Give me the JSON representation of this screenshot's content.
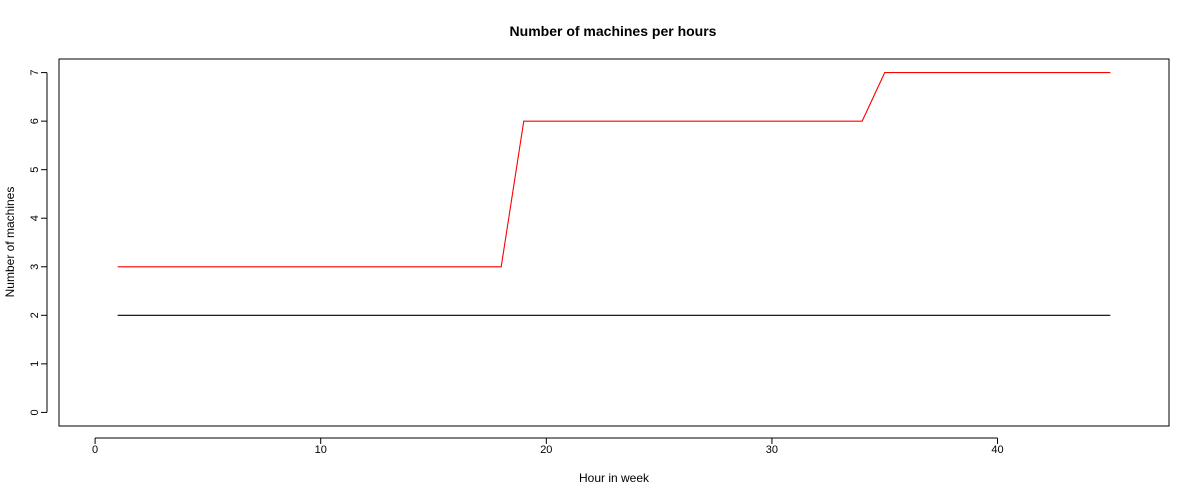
{
  "chart_data": {
    "type": "line",
    "title": "Number of machines per hours",
    "xlabel": "Hour in week",
    "ylabel": "Number of machines",
    "xlim": [
      -1.6,
      47.6
    ],
    "ylim": [
      -0.28,
      7.28
    ],
    "xticks": [
      0,
      10,
      20,
      30,
      40
    ],
    "yticks": [
      0,
      1,
      2,
      3,
      4,
      5,
      6,
      7
    ],
    "grid": false,
    "legend": "none",
    "series": [
      {
        "color": "#ff0000",
        "x": [
          1,
          18,
          19,
          34,
          35,
          45
        ],
        "y": [
          3,
          3,
          6,
          6,
          7,
          7
        ]
      },
      {
        "color": "#000000",
        "x": [
          1,
          45
        ],
        "y": [
          2,
          2
        ]
      }
    ]
  }
}
